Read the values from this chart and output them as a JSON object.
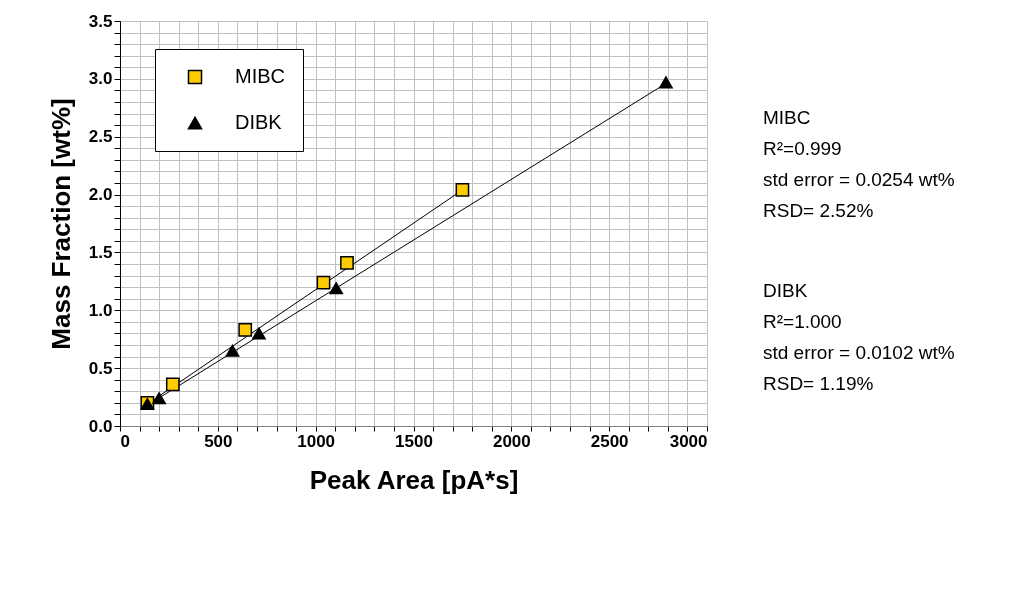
{
  "chart_data": {
    "type": "scatter",
    "xlabel": "Peak Area [pA*s]",
    "ylabel": "Mass Fraction [wt%]",
    "xlim": [
      0,
      3000
    ],
    "ylim": [
      0,
      3.5
    ],
    "xticks": [
      0,
      500,
      1000,
      1500,
      2000,
      2500,
      3000
    ],
    "yticks": [
      {
        "value": 0,
        "label": "0.0"
      },
      {
        "value": 0.5,
        "label": "0.5"
      },
      {
        "value": 1,
        "label": "1.0"
      },
      {
        "value": 1.5,
        "label": "1.5"
      },
      {
        "value": 2,
        "label": "2.0"
      },
      {
        "value": 2.5,
        "label": "2.5"
      },
      {
        "value": 3,
        "label": "3.0"
      },
      {
        "value": 3.5,
        "label": "3.5"
      }
    ],
    "grid": true,
    "legend": "top left",
    "series": [
      {
        "name": "MIBC",
        "color": "#ffcc00",
        "marker": "square",
        "x": [
          140,
          270,
          640,
          1040,
          1160,
          1750
        ],
        "values": [
          0.2,
          0.36,
          0.83,
          1.24,
          1.41,
          2.04
        ]
      },
      {
        "name": "DIBK",
        "color": "#000000",
        "marker": "triangle",
        "x": [
          140,
          200,
          575,
          710,
          1105,
          2790
        ],
        "values": [
          0.19,
          0.24,
          0.65,
          0.8,
          1.19,
          2.97
        ]
      },
      {
        "type": "line",
        "color": "#000000",
        "marker": "none",
        "x": [
          140,
          1750
        ],
        "values": [
          0.19,
          2.04
        ]
      },
      {
        "type": "line",
        "color": "#000000",
        "marker": "none",
        "x": [
          140,
          2790
        ],
        "values": [
          0.18,
          2.96
        ]
      }
    ],
    "annotations": [
      "MIBC",
      "R²=0.999",
      "std error = 0.0254 wt%",
      "RSD= 2.52%",
      "DIBK",
      "R²=1.000",
      "std error = 0.0102 wt%",
      "RSD= 1.19%"
    ]
  }
}
